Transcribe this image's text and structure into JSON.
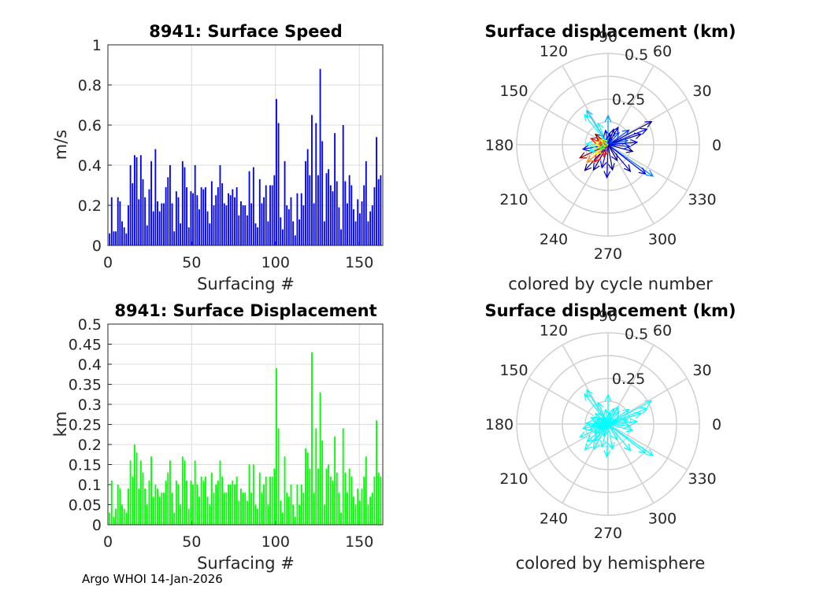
{
  "footer": "Argo WHOI 14-Jan-2026",
  "colors": {
    "speed_bars": "#0000ff",
    "displacement_bars": "#00ff00",
    "hemisphere_arrows": "#00ffff",
    "grid": "#dcdcdc",
    "polar_grid": "#cfcfcf"
  },
  "chart_data": [
    {
      "type": "bar",
      "title": "8941: Surface Speed",
      "xlabel": "Surfacing #",
      "ylabel": "m/s",
      "xlim": [
        0,
        164
      ],
      "ylim": [
        0,
        1
      ],
      "xticks": [
        "0",
        "50",
        "100",
        "150"
      ],
      "yticks": [
        "0",
        "0.2",
        "0.4",
        "0.6",
        "0.8",
        "1"
      ],
      "series": [
        {
          "name": "speed",
          "color": "#0000ff",
          "values": [
            0.06,
            0.24,
            0.07,
            0.07,
            0.24,
            0.22,
            0.12,
            0.09,
            0.06,
            0.2,
            0.4,
            0.31,
            0.45,
            0.44,
            0.23,
            0.45,
            0.33,
            0.24,
            0.1,
            0.28,
            0.42,
            0.17,
            0.48,
            0.22,
            0.17,
            0.21,
            0.21,
            0.29,
            0.34,
            0.4,
            0.21,
            0.07,
            0.27,
            0.24,
            0.11,
            0.42,
            0.39,
            0.29,
            0.09,
            0.27,
            0.26,
            0.4,
            0.25,
            0.18,
            0.29,
            0.28,
            0.29,
            0.17,
            0.11,
            0.32,
            0.2,
            0.25,
            0.29,
            0.4,
            0.31,
            0.21,
            0.2,
            0.26,
            0.25,
            0.28,
            0.24,
            0.29,
            0.15,
            0.22,
            0.2,
            0.2,
            0.15,
            0.37,
            0.21,
            0.39,
            0.11,
            0.09,
            0.33,
            0.21,
            0.24,
            0.3,
            0.12,
            0.3,
            0.3,
            0.35,
            0.73,
            0.61,
            0.14,
            0.08,
            0.42,
            0.2,
            0.18,
            0.24,
            0.12,
            0.05,
            0.26,
            0.13,
            0.26,
            0.2,
            0.42,
            0.48,
            0.35,
            0.65,
            0.21,
            0.61,
            0.35,
            0.88,
            0.52,
            0.12,
            0.36,
            0.38,
            0.3,
            0.27,
            0.56,
            0.32,
            0.19,
            0.08,
            0.6,
            0.32,
            0.21,
            0.35,
            0.3,
            0.18,
            0.12,
            0.23,
            0.16,
            0.22,
            0.3,
            0.42,
            0.12,
            0.17,
            0.2,
            0.29,
            0.54,
            0.33,
            0.35
          ]
        }
      ]
    },
    {
      "type": "bar",
      "title": "8941: Surface Displacement",
      "xlabel": "Surfacing #",
      "ylabel": "km",
      "xlim": [
        0,
        164
      ],
      "ylim": [
        0,
        0.5
      ],
      "xticks": [
        "0",
        "50",
        "100",
        "150"
      ],
      "yticks": [
        "0",
        "0.05",
        "0.1",
        "0.15",
        "0.2",
        "0.25",
        "0.3",
        "0.35",
        "0.4",
        "0.45",
        "0.5"
      ],
      "series": [
        {
          "name": "displacement",
          "color": "#00ff00",
          "values": [
            0.03,
            0.11,
            0.02,
            0.04,
            0.1,
            0.09,
            0.05,
            0.04,
            0.03,
            0.09,
            0.16,
            0.12,
            0.2,
            0.18,
            0.09,
            0.16,
            0.13,
            0.09,
            0.05,
            0.11,
            0.17,
            0.07,
            0.1,
            0.09,
            0.07,
            0.08,
            0.08,
            0.11,
            0.13,
            0.16,
            0.08,
            0.03,
            0.11,
            0.1,
            0.05,
            0.17,
            0.16,
            0.11,
            0.04,
            0.11,
            0.1,
            0.16,
            0.1,
            0.07,
            0.12,
            0.11,
            0.12,
            0.07,
            0.05,
            0.13,
            0.08,
            0.1,
            0.11,
            0.16,
            0.12,
            0.08,
            0.08,
            0.1,
            0.1,
            0.11,
            0.1,
            0.12,
            0.06,
            0.09,
            0.08,
            0.08,
            0.06,
            0.15,
            0.08,
            0.15,
            0.05,
            0.04,
            0.13,
            0.08,
            0.1,
            0.12,
            0.05,
            0.12,
            0.12,
            0.14,
            0.39,
            0.24,
            0.06,
            0.03,
            0.17,
            0.08,
            0.07,
            0.1,
            0.05,
            0.02,
            0.1,
            0.05,
            0.1,
            0.08,
            0.19,
            0.18,
            0.14,
            0.43,
            0.08,
            0.24,
            0.14,
            0.33,
            0.21,
            0.05,
            0.14,
            0.15,
            0.12,
            0.11,
            0.22,
            0.13,
            0.08,
            0.03,
            0.24,
            0.13,
            0.08,
            0.14,
            0.12,
            0.07,
            0.05,
            0.09,
            0.06,
            0.09,
            0.12,
            0.17,
            0.05,
            0.07,
            0.08,
            0.12,
            0.26,
            0.13,
            0.12
          ]
        }
      ]
    },
    {
      "type": "polar",
      "title": "Surface displacement (km)",
      "caption": "colored by cycle number",
      "rmax": 0.5,
      "rticks": [
        "0.25",
        "0.5"
      ],
      "angle_ticks": [
        "0",
        "30",
        "60",
        "90",
        "120",
        "150",
        "180",
        "210",
        "240",
        "270",
        "300",
        "330"
      ],
      "arrows": [
        {
          "angle": 28,
          "r": 0.27,
          "color": "#00008f"
        },
        {
          "angle": 22,
          "r": 0.23,
          "color": "#0000ff"
        },
        {
          "angle": 35,
          "r": 0.14,
          "color": "#0040ff"
        },
        {
          "angle": 18,
          "r": 0.19,
          "color": "#0000b0"
        },
        {
          "angle": 12,
          "r": 0.11,
          "color": "#0060ff"
        },
        {
          "angle": 5,
          "r": 0.16,
          "color": "#0000d0"
        },
        {
          "angle": 355,
          "r": 0.12,
          "color": "#0020ff"
        },
        {
          "angle": 345,
          "r": 0.14,
          "color": "#00008f"
        },
        {
          "angle": 325,
          "r": 0.3,
          "color": "#0080ff"
        },
        {
          "angle": 322,
          "r": 0.26,
          "color": "#0000ff"
        },
        {
          "angle": 310,
          "r": 0.19,
          "color": "#0000c0"
        },
        {
          "angle": 300,
          "r": 0.1,
          "color": "#0000a0"
        },
        {
          "angle": 280,
          "r": 0.14,
          "color": "#00008f"
        },
        {
          "angle": 268,
          "r": 0.18,
          "color": "#0000c0"
        },
        {
          "angle": 255,
          "r": 0.13,
          "color": "#0000ff"
        },
        {
          "angle": 240,
          "r": 0.16,
          "color": "#0000a0"
        },
        {
          "angle": 232,
          "r": 0.12,
          "color": "#ff0000"
        },
        {
          "angle": 228,
          "r": 0.19,
          "color": "#00008f"
        },
        {
          "angle": 220,
          "r": 0.15,
          "color": "#ff8000"
        },
        {
          "angle": 215,
          "r": 0.09,
          "color": "#ffff00"
        },
        {
          "angle": 205,
          "r": 0.17,
          "color": "#800000"
        },
        {
          "angle": 198,
          "r": 0.11,
          "color": "#00ffff"
        },
        {
          "angle": 190,
          "r": 0.14,
          "color": "#0000ff"
        },
        {
          "angle": 185,
          "r": 0.09,
          "color": "#80ff80"
        },
        {
          "angle": 178,
          "r": 0.12,
          "color": "#00ffff"
        },
        {
          "angle": 170,
          "r": 0.08,
          "color": "#ffff00"
        },
        {
          "angle": 160,
          "r": 0.1,
          "color": "#ff0000"
        },
        {
          "angle": 150,
          "r": 0.07,
          "color": "#ff8000"
        },
        {
          "angle": 140,
          "r": 0.09,
          "color": "#800000"
        },
        {
          "angle": 128,
          "r": 0.21,
          "color": "#00ffff"
        },
        {
          "angle": 122,
          "r": 0.22,
          "color": "#00c0ff"
        },
        {
          "angle": 115,
          "r": 0.13,
          "color": "#00ffff"
        },
        {
          "angle": 100,
          "r": 0.08,
          "color": "#0000ff"
        },
        {
          "angle": 90,
          "r": 0.16,
          "color": "#00a0ff"
        },
        {
          "angle": 80,
          "r": 0.06,
          "color": "#0000c0"
        },
        {
          "angle": 70,
          "r": 0.09,
          "color": "#00008f"
        },
        {
          "angle": 60,
          "r": 0.11,
          "color": "#0000ff"
        },
        {
          "angle": 48,
          "r": 0.09,
          "color": "#0040ff"
        },
        {
          "angle": 195,
          "r": 0.06,
          "color": "#ffd000"
        },
        {
          "angle": 175,
          "r": 0.05,
          "color": "#ff4000"
        },
        {
          "angle": 250,
          "r": 0.07,
          "color": "#ff2000"
        },
        {
          "angle": 210,
          "r": 0.05,
          "color": "#00ff80"
        },
        {
          "angle": 145,
          "r": 0.05,
          "color": "#c0ff40"
        }
      ]
    },
    {
      "type": "polar",
      "title": "Surface displacement (km)",
      "caption": "colored by hemisphere",
      "rmax": 0.5,
      "rticks": [
        "0.25",
        "0.5"
      ],
      "angle_ticks": [
        "0",
        "30",
        "60",
        "90",
        "120",
        "150",
        "180",
        "210",
        "240",
        "270",
        "300",
        "330"
      ],
      "arrows": [
        {
          "angle": 28,
          "r": 0.27,
          "color": "#00ffff"
        },
        {
          "angle": 22,
          "r": 0.23,
          "color": "#00ffff"
        },
        {
          "angle": 35,
          "r": 0.14,
          "color": "#00ffff"
        },
        {
          "angle": 18,
          "r": 0.19,
          "color": "#00ffff"
        },
        {
          "angle": 12,
          "r": 0.11,
          "color": "#00ffff"
        },
        {
          "angle": 5,
          "r": 0.16,
          "color": "#00ffff"
        },
        {
          "angle": 355,
          "r": 0.12,
          "color": "#00ffff"
        },
        {
          "angle": 345,
          "r": 0.14,
          "color": "#00ffff"
        },
        {
          "angle": 325,
          "r": 0.3,
          "color": "#00ffff"
        },
        {
          "angle": 322,
          "r": 0.26,
          "color": "#00ffff"
        },
        {
          "angle": 310,
          "r": 0.19,
          "color": "#00ffff"
        },
        {
          "angle": 300,
          "r": 0.1,
          "color": "#00ffff"
        },
        {
          "angle": 280,
          "r": 0.14,
          "color": "#00ffff"
        },
        {
          "angle": 268,
          "r": 0.18,
          "color": "#00ffff"
        },
        {
          "angle": 255,
          "r": 0.13,
          "color": "#00ffff"
        },
        {
          "angle": 240,
          "r": 0.16,
          "color": "#00ffff"
        },
        {
          "angle": 232,
          "r": 0.12,
          "color": "#00ffff"
        },
        {
          "angle": 228,
          "r": 0.19,
          "color": "#00ffff"
        },
        {
          "angle": 220,
          "r": 0.15,
          "color": "#00ffff"
        },
        {
          "angle": 215,
          "r": 0.09,
          "color": "#00ffff"
        },
        {
          "angle": 205,
          "r": 0.17,
          "color": "#00ffff"
        },
        {
          "angle": 198,
          "r": 0.11,
          "color": "#00ffff"
        },
        {
          "angle": 190,
          "r": 0.14,
          "color": "#00ffff"
        },
        {
          "angle": 185,
          "r": 0.09,
          "color": "#00ffff"
        },
        {
          "angle": 178,
          "r": 0.12,
          "color": "#00ffff"
        },
        {
          "angle": 170,
          "r": 0.08,
          "color": "#00ffff"
        },
        {
          "angle": 160,
          "r": 0.1,
          "color": "#00ffff"
        },
        {
          "angle": 150,
          "r": 0.07,
          "color": "#00ffff"
        },
        {
          "angle": 140,
          "r": 0.09,
          "color": "#00ffff"
        },
        {
          "angle": 128,
          "r": 0.21,
          "color": "#00ffff"
        },
        {
          "angle": 122,
          "r": 0.22,
          "color": "#00ffff"
        },
        {
          "angle": 115,
          "r": 0.13,
          "color": "#00ffff"
        },
        {
          "angle": 100,
          "r": 0.08,
          "color": "#00ffff"
        },
        {
          "angle": 90,
          "r": 0.16,
          "color": "#00ffff"
        },
        {
          "angle": 80,
          "r": 0.06,
          "color": "#00ffff"
        },
        {
          "angle": 70,
          "r": 0.09,
          "color": "#00ffff"
        },
        {
          "angle": 60,
          "r": 0.11,
          "color": "#00ffff"
        },
        {
          "angle": 48,
          "r": 0.09,
          "color": "#00ffff"
        },
        {
          "angle": 195,
          "r": 0.06,
          "color": "#00ffff"
        },
        {
          "angle": 175,
          "r": 0.05,
          "color": "#00ffff"
        },
        {
          "angle": 250,
          "r": 0.07,
          "color": "#00ffff"
        },
        {
          "angle": 210,
          "r": 0.05,
          "color": "#00ffff"
        },
        {
          "angle": 145,
          "r": 0.05,
          "color": "#00ffff"
        }
      ]
    }
  ]
}
